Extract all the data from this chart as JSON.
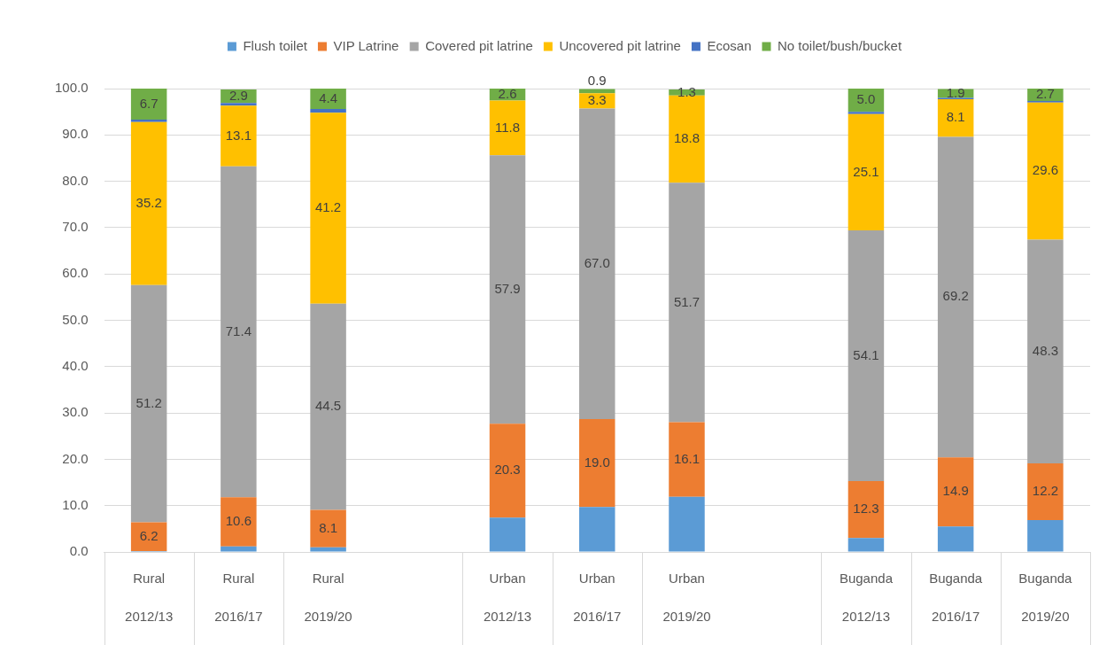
{
  "chart_data": {
    "type": "bar",
    "stacked": true,
    "legend": "top",
    "grid": "y",
    "categories": [
      "Rural 2012/13",
      "Rural 2016/17",
      "Rural 2019/20",
      null,
      "Urban 2012/13",
      "Urban 2016/17",
      "Urban 2019/20",
      null,
      "Buganda 2012/13",
      "Buganda 2016/17",
      "Buganda 2019/20"
    ],
    "ylim": [
      0,
      100
    ],
    "yticks": [
      {
        "value": 0,
        "label": "0.0"
      },
      {
        "value": 10,
        "label": "10.0"
      },
      {
        "value": 20,
        "label": "20.0"
      },
      {
        "value": 30,
        "label": "30.0"
      },
      {
        "value": 40,
        "label": "40.0"
      },
      {
        "value": 50,
        "label": "50.0"
      },
      {
        "value": 60,
        "label": "60.0"
      },
      {
        "value": 70,
        "label": "70.0"
      },
      {
        "value": 80,
        "label": "80.0"
      },
      {
        "value": 90,
        "label": "90.0"
      },
      {
        "value": 100,
        "label": "100.0"
      }
    ],
    "series": [
      {
        "name": "Flush toilet",
        "color": "#5b9bd5",
        "values": [
          0.2,
          1.2,
          1.0,
          null,
          7.4,
          9.7,
          11.9,
          null,
          3.0,
          5.5,
          6.9
        ]
      },
      {
        "name": "VIP Latrine",
        "color": "#ed7d31",
        "values": [
          6.2,
          10.6,
          8.1,
          null,
          20.3,
          19.0,
          16.1,
          null,
          12.3,
          14.9,
          12.2
        ],
        "value_labels": [
          "6.2",
          "10.6",
          "8.1",
          null,
          "20.3",
          "19.0",
          "16.1",
          null,
          "12.3",
          "14.9",
          "12.2"
        ]
      },
      {
        "name": "Covered pit latrine",
        "color": "#a5a5a5",
        "values": [
          51.2,
          71.4,
          44.5,
          null,
          57.9,
          67.0,
          51.7,
          null,
          54.1,
          69.2,
          48.3
        ],
        "value_labels": [
          "51.2",
          "71.4",
          "44.5",
          null,
          "57.9",
          "67.0",
          "51.7",
          null,
          "54.1",
          "69.2",
          "48.3"
        ]
      },
      {
        "name": "Uncovered pit latrine",
        "color": "#ffc000",
        "values": [
          35.2,
          13.1,
          41.2,
          null,
          11.8,
          3.3,
          18.8,
          null,
          25.1,
          8.1,
          29.6
        ],
        "value_labels": [
          "35.2",
          "13.1",
          "41.2",
          null,
          "11.8",
          "3.3",
          "18.8",
          null,
          "25.1",
          "8.1",
          "29.6"
        ]
      },
      {
        "name": "Ecosan",
        "color": "#4472c4",
        "values": [
          0.5,
          0.6,
          0.8,
          null,
          0,
          0,
          0,
          null,
          0.5,
          0.3,
          0.3
        ]
      },
      {
        "name": "No toilet/bush/bucket",
        "color": "#70ad47",
        "values": [
          6.7,
          2.9,
          4.4,
          null,
          2.6,
          0.9,
          1.3,
          null,
          5.0,
          1.9,
          2.7
        ],
        "value_labels": [
          "6.7",
          "2.9",
          "4.4",
          null,
          "2.6",
          "0.9",
          "1.3",
          null,
          "5.0",
          "1.9",
          "2.7"
        ]
      }
    ]
  }
}
